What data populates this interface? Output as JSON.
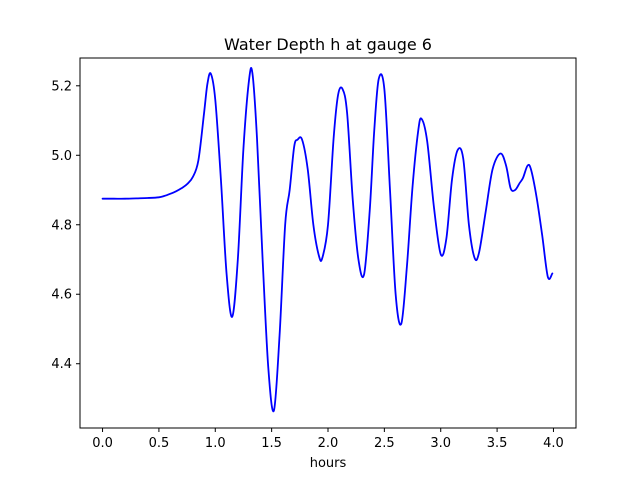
{
  "chart_data": {
    "type": "line",
    "title": "Water Depth h at gauge 6",
    "xlabel": "hours",
    "ylabel": "",
    "xlim": [
      -0.2,
      4.2
    ],
    "ylim": [
      4.215,
      5.28
    ],
    "x_ticks": [
      0.0,
      0.5,
      1.0,
      1.5,
      2.0,
      2.5,
      3.0,
      3.5,
      4.0
    ],
    "x_tick_labels": [
      "0.0",
      "0.5",
      "1.0",
      "1.5",
      "2.0",
      "2.5",
      "3.0",
      "3.5",
      "4.0"
    ],
    "y_ticks": [
      4.4,
      4.6,
      4.8,
      5.0,
      5.2
    ],
    "y_tick_labels": [
      "4.4",
      "4.6",
      "4.8",
      "5.0",
      "5.2"
    ],
    "grid": false,
    "series": [
      {
        "color": "#0000ff",
        "x": [
          0.0,
          0.1,
          0.2,
          0.3,
          0.4,
          0.5,
          0.55,
          0.6,
          0.65,
          0.7,
          0.75,
          0.8,
          0.85,
          0.9,
          0.93,
          0.96,
          1.0,
          1.05,
          1.1,
          1.15,
          1.2,
          1.25,
          1.3,
          1.33,
          1.37,
          1.42,
          1.47,
          1.52,
          1.57,
          1.62,
          1.66,
          1.7,
          1.73,
          1.77,
          1.82,
          1.87,
          1.92,
          1.95,
          2.0,
          2.05,
          2.09,
          2.13,
          2.17,
          2.22,
          2.27,
          2.32,
          2.37,
          2.41,
          2.45,
          2.5,
          2.55,
          2.6,
          2.65,
          2.7,
          2.75,
          2.8,
          2.83,
          2.88,
          2.94,
          3.0,
          3.05,
          3.1,
          3.15,
          3.2,
          3.25,
          3.3,
          3.34,
          3.4,
          3.46,
          3.53,
          3.58,
          3.62,
          3.66,
          3.7,
          3.73,
          3.77,
          3.8,
          3.85,
          3.9,
          3.95,
          3.99
        ],
        "y": [
          4.875,
          4.875,
          4.875,
          4.876,
          4.877,
          4.879,
          4.883,
          4.889,
          4.896,
          4.905,
          4.917,
          4.937,
          4.985,
          5.12,
          5.205,
          5.235,
          5.16,
          4.93,
          4.66,
          4.535,
          4.7,
          5.02,
          5.218,
          5.235,
          5.05,
          4.7,
          4.39,
          4.265,
          4.48,
          4.8,
          4.9,
          5.025,
          5.045,
          5.045,
          4.96,
          4.8,
          4.71,
          4.705,
          4.8,
          5.05,
          5.175,
          5.19,
          5.12,
          4.87,
          4.7,
          4.657,
          4.84,
          5.07,
          5.22,
          5.19,
          4.9,
          4.6,
          4.515,
          4.68,
          4.91,
          5.07,
          5.105,
          5.04,
          4.85,
          4.715,
          4.76,
          4.93,
          5.015,
          4.99,
          4.8,
          4.705,
          4.72,
          4.84,
          4.96,
          5.005,
          4.97,
          4.905,
          4.9,
          4.92,
          4.935,
          4.97,
          4.96,
          4.88,
          4.77,
          4.65,
          4.66
        ]
      }
    ]
  }
}
